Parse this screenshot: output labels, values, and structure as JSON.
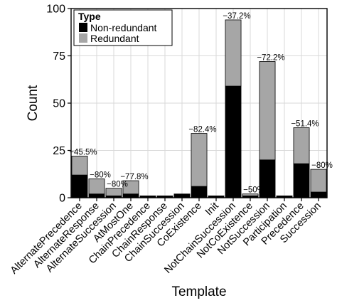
{
  "chart_data": {
    "type": "bar",
    "stacked": true,
    "xlabel": "Template",
    "ylabel": "Count",
    "ylim": [
      0,
      100
    ],
    "yticks": [
      0,
      25,
      50,
      75,
      100
    ],
    "grid": true,
    "legend": {
      "title": "Type",
      "placement": "top-left",
      "entries": [
        {
          "name": "Non-redundant",
          "color": "#000000"
        },
        {
          "name": "Redundant",
          "color": "#a6a6a6"
        }
      ]
    },
    "categories": [
      "AlternatePrecedence",
      "AlternateResponse",
      "AlternateSuccession",
      "AtMostOne",
      "ChainPrecedence",
      "ChainResponse",
      "ChainSuccession",
      "CoExistence",
      "Init",
      "NotChainSuccession",
      "NotCoExistence",
      "NotSuccession",
      "Participation",
      "Precedence",
      "Succession"
    ],
    "series": [
      {
        "name": "Non-redundant",
        "color": "#000000",
        "values": [
          12,
          2,
          1,
          2,
          1,
          1,
          2,
          6,
          1,
          59,
          1,
          20,
          1,
          18,
          3
        ]
      },
      {
        "name": "Redundant",
        "color": "#a6a6a6",
        "values": [
          10,
          8,
          4,
          7,
          0,
          0,
          0,
          28,
          0,
          35,
          1,
          52,
          0,
          19,
          12
        ]
      }
    ],
    "data_labels": [
      "−45.5%",
      "−80%",
      "−80%",
      "−77.8%",
      "",
      "",
      "",
      "−82.4%",
      "",
      "−37.2%",
      "−50%",
      "−72.2%",
      "",
      "−51.4%",
      "−80%"
    ]
  }
}
